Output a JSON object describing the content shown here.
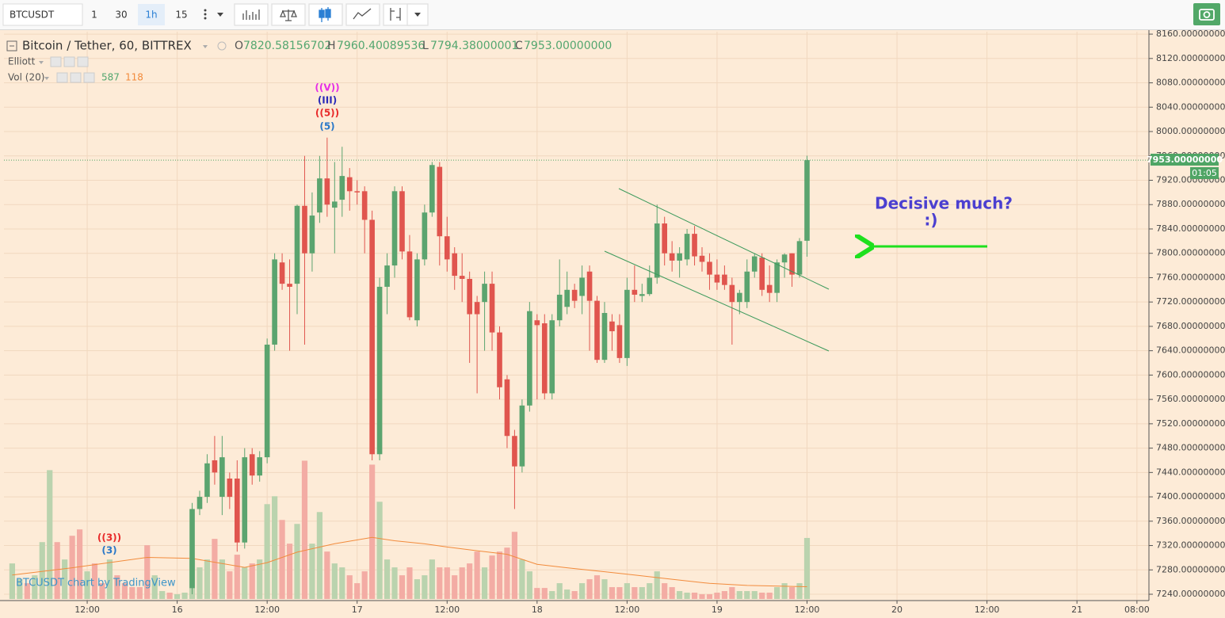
{
  "toolbar": {
    "symbol": "BTCUSDT",
    "intervals": [
      "1",
      "30",
      "1h",
      "15"
    ]
  },
  "legend": {
    "title": "Bitcoin / Tether, 60, BITTREX",
    "open_key": "O",
    "open": "7820.58156702",
    "high_key": "H",
    "high": "7960.40089536",
    "low_key": "L",
    "low": "7794.38000001",
    "close_key": "C",
    "close": "7953.00000000",
    "study": "Elliott",
    "volume_study": "Vol (20)"
  },
  "price_tag": {
    "price": "7953.00000000",
    "countdown": "01:05"
  },
  "watermark": "BTCUSDT chart by TradingView",
  "chart_data": {
    "type": "candlestick",
    "x": [
      26,
      27,
      28,
      29,
      30,
      31,
      32,
      33,
      34,
      35,
      36,
      37,
      38,
      39,
      40,
      41,
      42,
      43,
      44,
      45,
      46,
      47,
      48,
      49,
      50,
      51,
      52,
      53,
      54,
      55,
      56,
      57,
      58,
      59,
      60,
      61,
      62,
      63,
      64,
      65,
      66,
      67,
      68,
      69,
      70,
      71,
      72,
      73,
      74,
      75,
      76,
      77,
      78,
      79,
      80,
      81,
      82,
      83,
      84,
      85,
      86,
      87,
      88,
      89,
      90,
      91,
      92,
      93,
      94,
      95,
      96,
      97,
      98,
      99,
      100,
      101,
      102,
      103,
      104,
      105,
      106,
      107,
      108
    ],
    "open": [
      7250,
      7380,
      7400,
      7460,
      7400,
      7430,
      7430,
      7325,
      7470,
      7435,
      7465,
      7650,
      7785,
      7750,
      7750,
      7878,
      7800,
      7867,
      7923,
      7875,
      7888,
      7925,
      7902,
      7902,
      7855,
      7470,
      7745,
      7780,
      7902,
      7803,
      7690,
      7790,
      7867,
      7942,
      7828,
      7800,
      7763,
      7758,
      7720,
      7720,
      7750,
      7670,
      7593,
      7500,
      7450,
      7550,
      7690,
      7685,
      7570,
      7690,
      7712,
      7740,
      7730,
      7770,
      7722,
      7625,
      7688,
      7682,
      7628,
      7740,
      7730,
      7733,
      7760,
      7849,
      7800,
      7788,
      7790,
      7832,
      7796,
      7786,
      7765,
      7765,
      7748,
      7720,
      7720,
      7770,
      7793,
      7748,
      7735,
      7785,
      7800,
      7765,
      7820.58156702
    ],
    "high": [
      7390,
      7410,
      7470,
      7500,
      7500,
      7440,
      7460,
      7480,
      7480,
      7475,
      7660,
      7800,
      7800,
      7790,
      7880,
      7960,
      7900,
      7960,
      7990,
      7950,
      7975,
      7940,
      7920,
      7910,
      7870,
      7760,
      7800,
      7910,
      7910,
      7830,
      7800,
      7880,
      7950,
      7950,
      7860,
      7810,
      7800,
      7770,
      7730,
      7770,
      7770,
      7680,
      7600,
      7510,
      7560,
      7720,
      7700,
      7700,
      7700,
      7790,
      7770,
      7750,
      7780,
      7780,
      7730,
      7720,
      7700,
      7700,
      7760,
      7780,
      7750,
      7780,
      7880,
      7860,
      7820,
      7810,
      7840,
      7845,
      7810,
      7800,
      7790,
      7780,
      7760,
      7740,
      7790,
      7800,
      7800,
      7780,
      7790,
      7800,
      7800,
      7825,
      7960.40089536
    ],
    "low": [
      7240,
      7370,
      7390,
      7420,
      7370,
      7380,
      7310,
      7315,
      7420,
      7425,
      7455,
      7640,
      7740,
      7640,
      7700,
      7650,
      7770,
      7850,
      7860,
      7800,
      7860,
      7870,
      7880,
      7800,
      7460,
      7460,
      7700,
      7760,
      7790,
      7690,
      7680,
      7780,
      7860,
      7780,
      7770,
      7740,
      7720,
      7620,
      7570,
      7640,
      7640,
      7560,
      7480,
      7380,
      7440,
      7540,
      7560,
      7560,
      7560,
      7680,
      7700,
      7710,
      7700,
      7640,
      7620,
      7620,
      7640,
      7620,
      7615,
      7720,
      7720,
      7730,
      7750,
      7780,
      7770,
      7760,
      7780,
      7780,
      7770,
      7740,
      7740,
      7740,
      7650,
      7700,
      7710,
      7760,
      7730,
      7720,
      7720,
      7760,
      7745,
      7760,
      7794.38000001
    ],
    "close": [
      7380,
      7400,
      7455,
      7440,
      7465,
      7400,
      7325,
      7465,
      7435,
      7465,
      7650,
      7790,
      7750,
      7745,
      7878,
      7800,
      7862,
      7923,
      7880,
      7885,
      7927,
      7902,
      7900,
      7855,
      7470,
      7745,
      7780,
      7902,
      7803,
      7695,
      7790,
      7867,
      7945,
      7828,
      7790,
      7763,
      7758,
      7700,
      7700,
      7750,
      7670,
      7580,
      7500,
      7450,
      7550,
      7705,
      7682,
      7570,
      7690,
      7732,
      7740,
      7722,
      7760,
      7722,
      7625,
      7702,
      7672,
      7628,
      7740,
      7732,
      7733,
      7760,
      7849,
      7800,
      7788,
      7800,
      7832,
      7795,
      7786,
      7765,
      7752,
      7748,
      7720,
      7735,
      7770,
      7795,
      7740,
      7735,
      7785,
      7798,
      7765,
      7820,
      7953
    ],
    "up_color": "#5ba46f",
    "down_color": "#e0554e",
    "xlim": [
      0.9,
      153.6
    ],
    "xticks": [
      {
        "value": 12,
        "label": "12:00"
      },
      {
        "value": 24,
        "label": "16"
      },
      {
        "value": 36,
        "label": "12:00"
      },
      {
        "value": 48,
        "label": "17"
      },
      {
        "value": 60,
        "label": "12:00"
      },
      {
        "value": 72,
        "label": "18"
      },
      {
        "value": 84,
        "label": "12:00"
      },
      {
        "value": 96,
        "label": "19"
      },
      {
        "value": 108,
        "label": "12:00"
      },
      {
        "value": 120,
        "label": "20"
      },
      {
        "value": 132,
        "label": "12:00"
      },
      {
        "value": 144,
        "label": "21"
      },
      {
        "value": 152,
        "label": "08:00"
      }
    ],
    "ylim": [
      7216.6,
      8164
    ],
    "yticks": [
      {
        "value": 7240,
        "label": "7240.00000000"
      },
      {
        "value": 7280,
        "label": "7280.00000000"
      },
      {
        "value": 7320,
        "label": "7320.00000000"
      },
      {
        "value": 7360,
        "label": "7360.00000000"
      },
      {
        "value": 7400,
        "label": "7400.00000000"
      },
      {
        "value": 7440,
        "label": "7440.00000000"
      },
      {
        "value": 7480,
        "label": "7480.00000000"
      },
      {
        "value": 7520,
        "label": "7520.00000000"
      },
      {
        "value": 7560,
        "label": "7560.00000000"
      },
      {
        "value": 7600,
        "label": "7600.00000000"
      },
      {
        "value": 7640,
        "label": "7640.00000000"
      },
      {
        "value": 7680,
        "label": "7680.00000000"
      },
      {
        "value": 7720,
        "label": "7720.00000000"
      },
      {
        "value": 7760,
        "label": "7760.00000000"
      },
      {
        "value": 7800,
        "label": "7800.00000000"
      },
      {
        "value": 7840,
        "label": "7840.00000000"
      },
      {
        "value": 7880,
        "label": "7880.00000000"
      },
      {
        "value": 7920,
        "label": "7920.00000000"
      },
      {
        "value": 7960,
        "label": "7960.00000000"
      },
      {
        "value": 8000,
        "label": "8000.00000000"
      },
      {
        "value": 8040,
        "label": "8040.00000000"
      },
      {
        "value": 8080,
        "label": "8080.00000000"
      },
      {
        "value": 8120,
        "label": "8120.00000000"
      },
      {
        "value": 8160,
        "label": "8160.00000000"
      }
    ],
    "grid": true,
    "last_price": 7953,
    "volume_ylim": [
      0,
      1600
    ],
    "volume": {
      "x": [
        2,
        3,
        4,
        5,
        6,
        7,
        8,
        9,
        10,
        11,
        12,
        13,
        14,
        15,
        16,
        17,
        18,
        19,
        20,
        21,
        22,
        23,
        24,
        25,
        26,
        27,
        28,
        29,
        30,
        31,
        32,
        33,
        34,
        35,
        36,
        37,
        38,
        39,
        40,
        41,
        42,
        43,
        44,
        45,
        46,
        47,
        48,
        49,
        50,
        51,
        52,
        53,
        54,
        55,
        56,
        57,
        58,
        59,
        60,
        61,
        62,
        63,
        64,
        65,
        66,
        67,
        68,
        69,
        70,
        71,
        72,
        73,
        74,
        75,
        76,
        77,
        78,
        79,
        80,
        81,
        82,
        83,
        84,
        85,
        86,
        87,
        88,
        89,
        90,
        91,
        92,
        93,
        94,
        95,
        96,
        97,
        98,
        99,
        100,
        101,
        102,
        103,
        104,
        105,
        106,
        107,
        108
      ],
      "values": [
        342,
        190,
        152,
        228,
        547,
        1239,
        547,
        380,
        608,
        669,
        266,
        342,
        152,
        380,
        228,
        152,
        114,
        114,
        517,
        228,
        76,
        61,
        46,
        61,
        380,
        304,
        380,
        578,
        380,
        266,
        426,
        304,
        342,
        380,
        912,
        988,
        760,
        532,
        722,
        1330,
        532,
        836,
        456,
        342,
        304,
        228,
        152,
        266,
        1292,
        935,
        380,
        304,
        228,
        304,
        190,
        228,
        380,
        304,
        304,
        228,
        304,
        342,
        456,
        304,
        418,
        456,
        494,
        646,
        380,
        266,
        106,
        106,
        76,
        152,
        91,
        76,
        152,
        190,
        228,
        190,
        114,
        114,
        152,
        114,
        114,
        152,
        266,
        152,
        114,
        76,
        61,
        61,
        46,
        46,
        61,
        76,
        114,
        76,
        76,
        76,
        61,
        61,
        114,
        152,
        114,
        152,
        587
      ],
      "colors": [
        "#bad3ae",
        "#bad3ae",
        "#f3aca4",
        "#bad3ae",
        "#bad3ae",
        "#bad3ae",
        "#f3aca4",
        "#bad3ae",
        "#f3aca4",
        "#f3aca4",
        "#bad3ae",
        "#f3aca4",
        "#f3aca4",
        "#bad3ae",
        "#f3aca4",
        "#f3aca4",
        "#f3aca4",
        "#f3aca4",
        "#f3aca4",
        "#bad3ae",
        "#bad3ae",
        "#f3aca4",
        "#bad3ae",
        "#bad3ae",
        "#bad3ae",
        "#bad3ae",
        "#bad3ae",
        "#f3aca4",
        "#bad3ae",
        "#f3aca4",
        "#f3aca4",
        "#bad3ae",
        "#f3aca4",
        "#bad3ae",
        "#bad3ae",
        "#bad3ae",
        "#f3aca4",
        "#f3aca4",
        "#bad3ae",
        "#f3aca4",
        "#bad3ae",
        "#bad3ae",
        "#f3aca4",
        "#bad3ae",
        "#bad3ae",
        "#f3aca4",
        "#f3aca4",
        "#f3aca4",
        "#f3aca4",
        "#bad3ae",
        "#bad3ae",
        "#bad3ae",
        "#f3aca4",
        "#f3aca4",
        "#bad3ae",
        "#bad3ae",
        "#bad3ae",
        "#f3aca4",
        "#f3aca4",
        "#f3aca4",
        "#f3aca4",
        "#f3aca4",
        "#f3aca4",
        "#bad3ae",
        "#f3aca4",
        "#f3aca4",
        "#f3aca4",
        "#f3aca4",
        "#bad3ae",
        "#bad3ae",
        "#f3aca4",
        "#f3aca4",
        "#bad3ae",
        "#bad3ae",
        "#bad3ae",
        "#f3aca4",
        "#bad3ae",
        "#f3aca4",
        "#f3aca4",
        "#bad3ae",
        "#f3aca4",
        "#f3aca4",
        "#bad3ae",
        "#f3aca4",
        "#bad3ae",
        "#bad3ae",
        "#bad3ae",
        "#f3aca4",
        "#f3aca4",
        "#bad3ae",
        "#bad3ae",
        "#f3aca4",
        "#f3aca4",
        "#f3aca4",
        "#f3aca4",
        "#f3aca4",
        "#f3aca4",
        "#bad3ae",
        "#bad3ae",
        "#bad3ae",
        "#f3aca4",
        "#f3aca4",
        "#bad3ae",
        "#bad3ae",
        "#f3aca4",
        "#bad3ae",
        "#bad3ae"
      ]
    },
    "ma": {
      "x": [
        2,
        10,
        20,
        26,
        33,
        36,
        40,
        45,
        50,
        53,
        57,
        60,
        64,
        68,
        72,
        76,
        80,
        85,
        90,
        95,
        100,
        108
      ],
      "values": [
        230,
        300,
        400,
        390,
        304,
        350,
        450,
        532,
        593,
        560,
        530,
        500,
        464,
        430,
        334,
        300,
        270,
        230,
        190,
        150,
        130,
        118
      ],
      "color": "#f28b3c"
    },
    "annotations": [
      {
        "text": "((V))",
        "color": "#e62ee6"
      },
      {
        "text": "(III)",
        "color": "#2a2ab8"
      },
      {
        "text": "((5))",
        "color": "#e82a2a"
      },
      {
        "text": "(5)",
        "color": "#2a78c8"
      },
      {
        "text": "((3))",
        "color": "#e82a2a"
      },
      {
        "text": "(3)",
        "color": "#2a78c8"
      },
      {
        "text": "Decisive much?",
        "color": "#4b3fd0"
      },
      {
        "text": ":)",
        "color": "#4b3fd0"
      }
    ]
  }
}
